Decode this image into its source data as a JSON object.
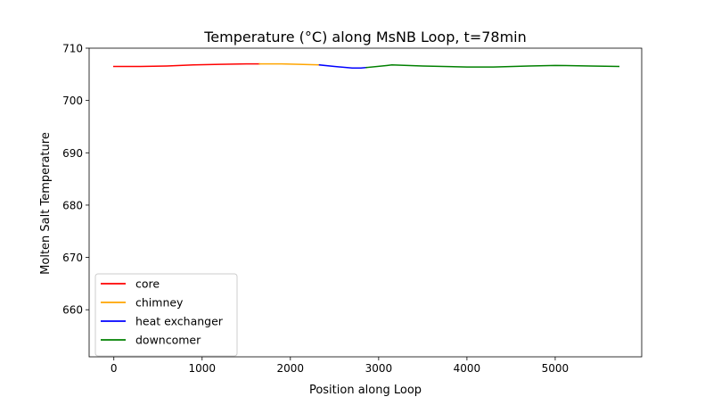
{
  "chart_data": {
    "type": "line",
    "title": "Temperature (°C) along MsNB Loop, t=78min",
    "xlabel": "Position along Loop",
    "ylabel": "Molten Salt Temperature",
    "xlim": [
      -280,
      5980
    ],
    "ylim": [
      651,
      710
    ],
    "xticks": [
      0,
      1000,
      2000,
      3000,
      4000,
      5000
    ],
    "yticks": [
      660,
      670,
      680,
      690,
      700,
      710
    ],
    "grid": false,
    "legend_position": "lower-left",
    "series": [
      {
        "name": "core",
        "color": "#ff0000",
        "x": [
          0,
          300,
          600,
          900,
          1200,
          1500,
          1650
        ],
        "y": [
          706.5,
          706.5,
          706.6,
          706.8,
          706.9,
          707.0,
          707.0
        ]
      },
      {
        "name": "chimney",
        "color": "#ffa500",
        "x": [
          1650,
          1900,
          2100,
          2330
        ],
        "y": [
          707.0,
          707.0,
          706.9,
          706.8
        ]
      },
      {
        "name": "heat exchanger",
        "color": "#0000ff",
        "x": [
          2330,
          2500,
          2700,
          2800,
          2860
        ],
        "y": [
          706.8,
          706.5,
          706.2,
          706.2,
          706.3
        ]
      },
      {
        "name": "downcomer",
        "color": "#008000",
        "x": [
          2860,
          3100,
          3150,
          3500,
          4000,
          4300,
          4700,
          5000,
          5400,
          5720
        ],
        "y": [
          706.3,
          706.7,
          706.8,
          706.6,
          706.4,
          706.4,
          706.6,
          706.7,
          706.6,
          706.5
        ]
      }
    ]
  }
}
